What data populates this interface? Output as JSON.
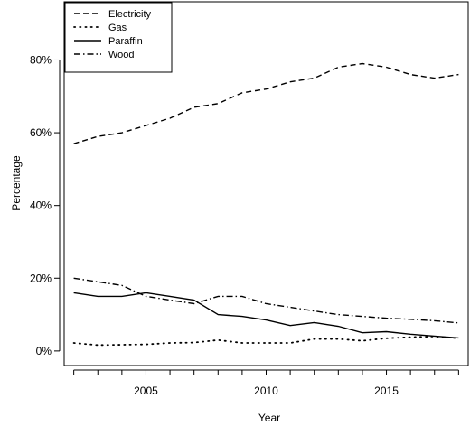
{
  "chart_data": {
    "type": "line",
    "title": "",
    "xlabel": "Year",
    "ylabel": "Percentage",
    "xlim": [
      2001.6,
      2018.4
    ],
    "ylim": [
      -0.04,
      0.96
    ],
    "x_ticks": [
      2005,
      2010,
      2015
    ],
    "x_tick_labels": [
      "2005",
      "2010",
      "2015"
    ],
    "x_minor_ticks": [
      2002,
      2003,
      2004,
      2005,
      2006,
      2007,
      2008,
      2009,
      2010,
      2011,
      2012,
      2013,
      2014,
      2015,
      2016,
      2017,
      2018
    ],
    "y_ticks": [
      0,
      0.2,
      0.4,
      0.6,
      0.8
    ],
    "y_tick_labels": [
      "0%",
      "20%",
      "40%",
      "60%",
      "80%"
    ],
    "grid": false,
    "legend_position": "top-left",
    "x": [
      2002,
      2003,
      2004,
      2005,
      2006,
      2007,
      2008,
      2009,
      2010,
      2011,
      2012,
      2013,
      2014,
      2015,
      2016,
      2017,
      2018
    ],
    "series": [
      {
        "name": "Electricity",
        "style": "dashed",
        "values": [
          0.57,
          0.59,
          0.6,
          0.62,
          0.64,
          0.67,
          0.68,
          0.71,
          0.72,
          0.74,
          0.75,
          0.78,
          0.79,
          0.78,
          0.76,
          0.75,
          0.76
        ]
      },
      {
        "name": "Gas",
        "style": "dotted",
        "values": [
          0.022,
          0.016,
          0.017,
          0.018,
          0.022,
          0.023,
          0.03,
          0.022,
          0.022,
          0.022,
          0.033,
          0.033,
          0.028,
          0.035,
          0.038,
          0.04,
          0.035
        ]
      },
      {
        "name": "Paraffin",
        "style": "solid",
        "values": [
          0.16,
          0.15,
          0.15,
          0.16,
          0.15,
          0.14,
          0.1,
          0.095,
          0.085,
          0.07,
          0.078,
          0.068,
          0.05,
          0.053,
          0.046,
          0.041,
          0.036
        ]
      },
      {
        "name": "Wood",
        "style": "dashdot",
        "values": [
          0.2,
          0.19,
          0.18,
          0.15,
          0.14,
          0.13,
          0.15,
          0.15,
          0.13,
          0.12,
          0.11,
          0.1,
          0.095,
          0.09,
          0.087,
          0.083,
          0.077
        ]
      }
    ]
  }
}
